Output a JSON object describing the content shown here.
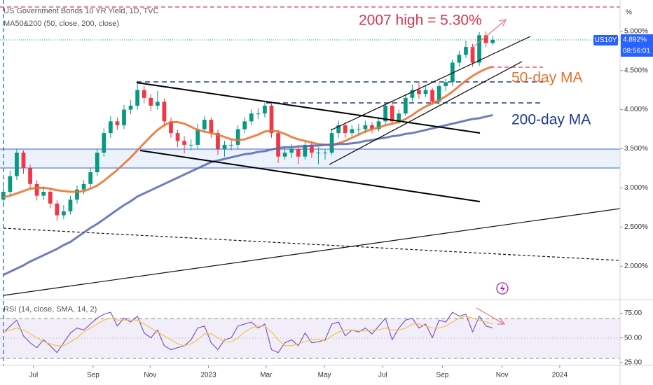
{
  "chart_data": [
    {
      "type": "candlestick",
      "title": "US Government Bonds 10 YR Yield, 1D, TVC",
      "subtitle": "MA50&200 (50, close, 200, close)",
      "annotation": "2007 high = 5.30%",
      "axis_unit": "%",
      "symbol": "US10Y",
      "last_label": "4.892%",
      "countdown": "08:56:01",
      "up_color": "#089981",
      "down_color": "#f23645",
      "categories": [
        null,
        null,
        null,
        null,
        null,
        null,
        null,
        null,
        null,
        null,
        null,
        null,
        null,
        null,
        null,
        null,
        null,
        null,
        null,
        null,
        null,
        null,
        null,
        null,
        null,
        null,
        null,
        null,
        null,
        null,
        null,
        null,
        null,
        null,
        null,
        null,
        null,
        null,
        null,
        null,
        null,
        null,
        null,
        null,
        null,
        null,
        null,
        null,
        null,
        null,
        null,
        null,
        null,
        null,
        null,
        null,
        null,
        null,
        null,
        null,
        null,
        null,
        null,
        null,
        null,
        null,
        null,
        null,
        null,
        null,
        null,
        null,
        null,
        null
      ],
      "open": [
        2.85,
        2.95,
        3.15,
        3.45,
        3.25,
        3.05,
        2.9,
        2.95,
        2.8,
        2.65,
        2.7,
        2.85,
        2.98,
        3.05,
        3.2,
        3.45,
        3.7,
        3.85,
        3.8,
        4.0,
        4.05,
        4.25,
        4.15,
        4.05,
        4.1,
        3.85,
        3.7,
        3.6,
        3.55,
        3.55,
        3.75,
        3.87,
        3.7,
        3.5,
        3.55,
        3.55,
        3.75,
        3.85,
        3.95,
        3.95,
        4.05,
        3.7,
        3.4,
        3.45,
        3.5,
        3.4,
        3.55,
        3.45,
        3.45,
        3.45,
        3.7,
        3.8,
        3.7,
        3.75,
        3.75,
        3.8,
        3.75,
        3.85,
        4.05,
        3.85,
        3.95,
        4.15,
        4.25,
        4.2,
        4.25,
        4.1,
        4.3,
        4.35,
        4.6,
        4.7,
        4.8,
        4.6,
        4.95,
        4.85
      ],
      "high": [
        3.02,
        3.22,
        3.5,
        3.48,
        3.3,
        3.1,
        3.02,
        3.0,
        2.84,
        2.78,
        2.9,
        3.03,
        3.1,
        3.26,
        3.5,
        3.76,
        3.92,
        3.9,
        4.06,
        4.12,
        4.34,
        4.3,
        4.2,
        4.24,
        4.14,
        3.9,
        3.74,
        3.66,
        3.62,
        3.82,
        3.92,
        3.9,
        3.74,
        3.6,
        3.62,
        3.8,
        3.9,
        4.0,
        4.02,
        4.09,
        4.08,
        3.74,
        3.52,
        3.56,
        3.54,
        3.6,
        3.6,
        3.52,
        3.5,
        3.76,
        3.86,
        3.84,
        3.8,
        3.82,
        3.86,
        3.84,
        3.9,
        4.08,
        4.1,
        4.0,
        4.2,
        4.32,
        4.36,
        4.3,
        4.28,
        4.34,
        4.4,
        4.64,
        4.75,
        4.88,
        4.84,
        4.99,
        5.0,
        4.94
      ],
      "low": [
        2.8,
        2.9,
        3.1,
        3.18,
        2.98,
        2.84,
        2.85,
        2.74,
        2.58,
        2.6,
        2.66,
        2.8,
        2.92,
        3.0,
        3.15,
        3.4,
        3.64,
        3.74,
        3.75,
        3.94,
        4.0,
        4.08,
        3.98,
        4.0,
        3.78,
        3.64,
        3.52,
        3.44,
        3.48,
        3.5,
        3.7,
        3.64,
        3.42,
        3.4,
        3.48,
        3.5,
        3.7,
        3.8,
        3.88,
        3.9,
        3.64,
        3.32,
        3.36,
        3.38,
        3.3,
        3.36,
        3.38,
        3.3,
        3.36,
        3.42,
        3.64,
        3.64,
        3.66,
        3.68,
        3.7,
        3.7,
        3.72,
        3.8,
        3.8,
        3.82,
        3.92,
        4.1,
        4.14,
        4.16,
        4.06,
        4.06,
        4.24,
        4.3,
        4.55,
        4.66,
        4.55,
        4.56,
        4.8,
        4.82
      ],
      "close": [
        2.95,
        3.15,
        3.45,
        3.25,
        3.05,
        2.9,
        2.95,
        2.8,
        2.65,
        2.7,
        2.85,
        2.98,
        3.05,
        3.2,
        3.45,
        3.7,
        3.85,
        3.8,
        4.0,
        4.05,
        4.25,
        4.15,
        4.05,
        4.1,
        3.85,
        3.7,
        3.6,
        3.55,
        3.55,
        3.75,
        3.87,
        3.7,
        3.5,
        3.55,
        3.55,
        3.75,
        3.85,
        3.95,
        3.95,
        4.05,
        3.7,
        3.4,
        3.45,
        3.5,
        3.4,
        3.55,
        3.45,
        3.45,
        3.45,
        3.7,
        3.8,
        3.7,
        3.75,
        3.75,
        3.8,
        3.75,
        3.85,
        4.05,
        3.85,
        3.95,
        4.15,
        4.25,
        4.2,
        4.25,
        4.1,
        4.3,
        4.35,
        4.6,
        4.7,
        4.8,
        4.6,
        4.95,
        4.85,
        4.892
      ],
      "series": [
        {
          "name": "50-day MA",
          "color": "#e8702a",
          "values": [
            2.88,
            2.9,
            2.93,
            2.96,
            2.99,
            3.0,
            3.0,
            2.99,
            2.97,
            2.96,
            2.95,
            2.95,
            2.96,
            2.99,
            3.03,
            3.09,
            3.16,
            3.23,
            3.31,
            3.39,
            3.48,
            3.57,
            3.66,
            3.74,
            3.8,
            3.84,
            3.84,
            3.82,
            3.78,
            3.74,
            3.72,
            3.7,
            3.68,
            3.65,
            3.62,
            3.61,
            3.62,
            3.65,
            3.68,
            3.72,
            3.73,
            3.72,
            3.69,
            3.65,
            3.62,
            3.6,
            3.58,
            3.56,
            3.55,
            3.55,
            3.57,
            3.6,
            3.64,
            3.68,
            3.72,
            3.75,
            3.77,
            3.8,
            3.82,
            3.84,
            3.88,
            3.93,
            3.99,
            4.04,
            4.08,
            4.12,
            4.17,
            4.23,
            4.3,
            4.37,
            4.43,
            4.48,
            4.52,
            4.55
          ]
        },
        {
          "name": "200-day MA",
          "color": "#1f3a93",
          "line_color": "#5566b0",
          "values": [
            1.89,
            1.93,
            1.97,
            2.01,
            2.06,
            2.1,
            2.14,
            2.18,
            2.22,
            2.27,
            2.31,
            2.37,
            2.43,
            2.49,
            2.54,
            2.6,
            2.66,
            2.72,
            2.78,
            2.83,
            2.89,
            2.93,
            2.97,
            3.01,
            3.05,
            3.09,
            3.13,
            3.17,
            3.21,
            3.25,
            3.29,
            3.33,
            3.35,
            3.37,
            3.39,
            3.41,
            3.43,
            3.44,
            3.46,
            3.47,
            3.49,
            3.51,
            3.52,
            3.52,
            3.53,
            3.53,
            3.54,
            3.54,
            3.55,
            3.55,
            3.56,
            3.56,
            3.57,
            3.58,
            3.6,
            3.61,
            3.63,
            3.64,
            3.66,
            3.67,
            3.69,
            3.7,
            3.72,
            3.74,
            3.76,
            3.78,
            3.8,
            3.82,
            3.84,
            3.86,
            3.88,
            3.89,
            3.91,
            3.93
          ]
        }
      ],
      "xlim": [
        -0.5,
        92
      ],
      "ylim": [
        1.6,
        5.4
      ],
      "yticks": [
        {
          "value": 2,
          "label": "2.000%"
        },
        {
          "value": 2.5,
          "label": "2.500%"
        },
        {
          "value": 3,
          "label": "3.000%"
        },
        {
          "value": 3.5,
          "label": "3.500%"
        },
        {
          "value": 4,
          "label": "4.000%"
        },
        {
          "value": 4.5,
          "label": "4.500%"
        },
        {
          "value": 5,
          "label": "5.000%"
        }
      ],
      "xticks": [
        {
          "value": 4.5,
          "label": "Jul"
        },
        {
          "value": 13.4,
          "label": "Sep"
        },
        {
          "value": 21.9,
          "label": "Nov"
        },
        {
          "value": 30.6,
          "label": "2023"
        },
        {
          "value": 39.2,
          "label": "Mar"
        },
        {
          "value": 47.9,
          "label": "May"
        },
        {
          "value": 56.6,
          "label": "Jul"
        },
        {
          "value": 65.5,
          "label": "Sep"
        },
        {
          "value": 74.4,
          "label": "Nov"
        },
        {
          "value": 83,
          "label": "2024"
        }
      ]
    },
    {
      "type": "line",
      "title": "RSI (14, close, SMA, 14, 2)",
      "ylim": [
        22,
        86
      ],
      "yticks": [
        {
          "value": 25,
          "label": "25.00"
        },
        {
          "value": 50,
          "label": "50.00"
        },
        {
          "value": 75,
          "label": "75.00"
        }
      ],
      "series": [
        {
          "color": "#7e57c2",
          "values": [
            55,
            62,
            68,
            52,
            45,
            40,
            48,
            42,
            35,
            45,
            55,
            60,
            58,
            64,
            70,
            74,
            76,
            62,
            70,
            66,
            72,
            55,
            50,
            58,
            42,
            38,
            40,
            42,
            48,
            60,
            62,
            45,
            38,
            48,
            50,
            62,
            64,
            66,
            60,
            64,
            38,
            35,
            45,
            48,
            42,
            55,
            45,
            46,
            48,
            64,
            66,
            52,
            58,
            56,
            60,
            54,
            62,
            70,
            48,
            60,
            68,
            70,
            60,
            64,
            50,
            68,
            66,
            76,
            72,
            74,
            56,
            72,
            62,
            60
          ]
        },
        {
          "color": "#f5c242",
          "values": [
            56,
            58,
            60,
            58,
            54,
            50,
            46,
            44,
            42,
            42,
            46,
            50,
            56,
            60,
            64,
            68,
            70,
            68,
            68,
            68,
            68,
            64,
            60,
            56,
            52,
            48,
            44,
            42,
            44,
            48,
            54,
            54,
            50,
            46,
            46,
            50,
            56,
            60,
            62,
            62,
            56,
            48,
            42,
            42,
            44,
            46,
            48,
            48,
            47,
            52,
            56,
            58,
            58,
            57,
            57,
            58,
            58,
            60,
            58,
            58,
            60,
            64,
            64,
            62,
            60,
            60,
            62,
            66,
            70,
            72,
            70,
            68,
            66,
            64
          ]
        }
      ]
    }
  ]
}
